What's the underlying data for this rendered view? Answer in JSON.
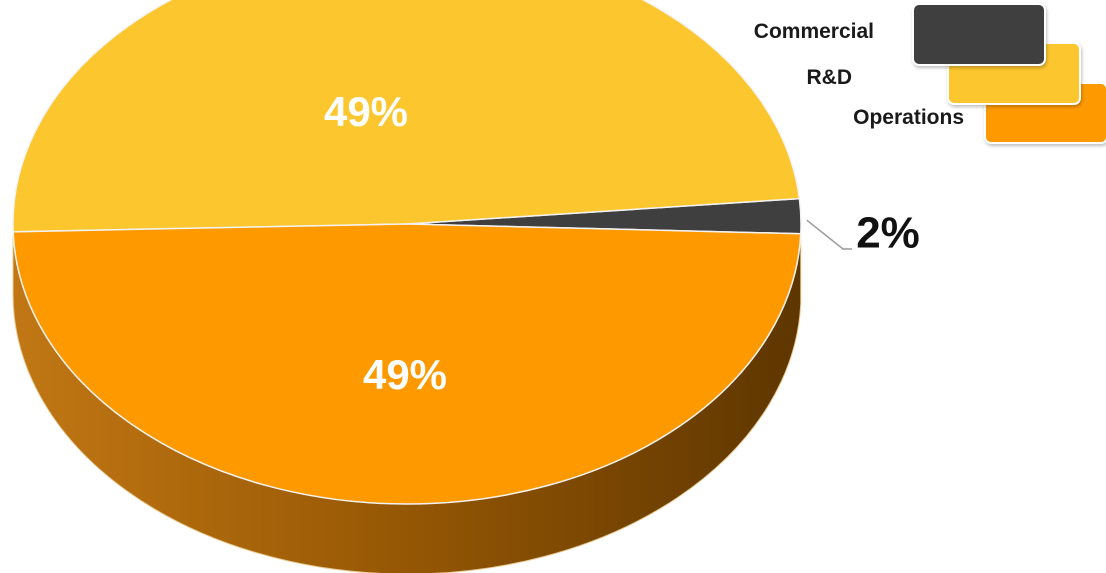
{
  "chart_data": {
    "type": "pie",
    "style": "3d",
    "slices": [
      {
        "label": "Commercial",
        "value": 2,
        "display": "2%",
        "color": "#3f3f3f"
      },
      {
        "label": "R&D",
        "value": 49,
        "display": "49%",
        "color": "#fcc72e"
      },
      {
        "label": "Operations",
        "value": 49,
        "display": "49%",
        "color": "#fe9a00"
      }
    ],
    "legend": {
      "position": "top-right",
      "entries": [
        "Commercial",
        "R&D",
        "Operations"
      ]
    }
  },
  "colors": {
    "commercial": "#3f3f3f",
    "rnd": "#fcc72e",
    "operations": "#fe9a00",
    "operations_side_dark": "#6a3d00",
    "operations_side_light": "#c67a10",
    "leader_line": "#9a9a9a"
  }
}
